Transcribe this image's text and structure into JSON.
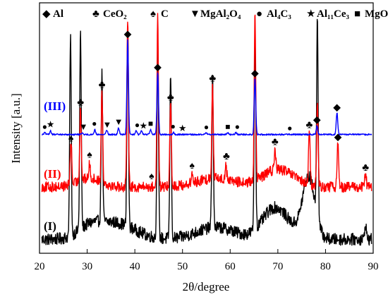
{
  "chart_data": {
    "type": "line",
    "title": "",
    "xlabel": "2θ/degree",
    "ylabel": "Intensity [a.u.]",
    "xlim": [
      20,
      90
    ],
    "x_ticks": [
      "20",
      "30",
      "40",
      "50",
      "60",
      "70",
      "80",
      "90"
    ],
    "y_ticks_visible": false,
    "grid": false,
    "legend": [
      {
        "symbol": "diamond",
        "name": "Al"
      },
      {
        "symbol": "club",
        "name": "CeO2",
        "display": "CeO₂"
      },
      {
        "symbol": "spade",
        "name": "C"
      },
      {
        "symbol": "triangle-down",
        "name": "MgAl2O4",
        "display": "MgAl₂O₄"
      },
      {
        "symbol": "circle",
        "name": "Al4C3",
        "display": "Al₄C₃"
      },
      {
        "symbol": "star",
        "name": "Al11Ce3",
        "display": "Al₁₁Ce₃"
      },
      {
        "symbol": "square",
        "name": "MgO"
      }
    ],
    "legend_placement": "top",
    "series": [
      {
        "label": "(I)",
        "color": "#000000",
        "baseline": 0.02,
        "noise": 0.06,
        "humps": [
          [
            30.5,
            0.05,
            2.5
          ],
          [
            36.0,
            0.08,
            4.0
          ],
          [
            57.0,
            0.06,
            4.0
          ],
          [
            69.0,
            0.12,
            2.5
          ],
          [
            76.5,
            0.3,
            1.3
          ],
          [
            71.5,
            0.05,
            3.0
          ]
        ],
        "peaks": [
          [
            26.5,
            1.0
          ],
          [
            28.6,
            0.98
          ],
          [
            33.1,
            0.73
          ],
          [
            38.5,
            1.0
          ],
          [
            44.8,
            0.98
          ],
          [
            47.5,
            0.82
          ],
          [
            56.3,
            0.76
          ],
          [
            65.2,
            1.0
          ],
          [
            78.3,
            1.0
          ],
          [
            88.4,
            0.08
          ]
        ]
      },
      {
        "label": "(II)",
        "color": "#ff0000",
        "baseline": 0.02,
        "noise": 0.06,
        "humps": [
          [
            30.5,
            0.05,
            2.5
          ],
          [
            57.0,
            0.05,
            4.0
          ],
          [
            69.0,
            0.06,
            3.0
          ],
          [
            71.5,
            0.05,
            3.0
          ]
        ],
        "peaks": [
          [
            26.6,
            0.26
          ],
          [
            28.6,
            0.42
          ],
          [
            30.5,
            0.08
          ],
          [
            33.1,
            0.52
          ],
          [
            38.5,
            0.98
          ],
          [
            44.8,
            0.98
          ],
          [
            47.5,
            0.49
          ],
          [
            52.0,
            0.05
          ],
          [
            56.3,
            0.55
          ],
          [
            59.1,
            0.08
          ],
          [
            65.2,
            0.98
          ],
          [
            69.4,
            0.12
          ],
          [
            76.6,
            0.31
          ],
          [
            78.3,
            0.48
          ],
          [
            82.6,
            0.26
          ],
          [
            88.4,
            0.08
          ]
        ]
      },
      {
        "label": "(III)",
        "color": "#0000ff",
        "baseline": 0.01,
        "noise": 0.015,
        "humps": [],
        "peaks": [
          [
            21.1,
            0.02
          ],
          [
            22.3,
            0.04
          ],
          [
            29.0,
            0.02
          ],
          [
            31.6,
            0.05
          ],
          [
            34.1,
            0.05
          ],
          [
            36.6,
            0.07
          ],
          [
            38.5,
            1.0
          ],
          [
            40.3,
            0.04
          ],
          [
            41.4,
            0.04
          ],
          [
            43.3,
            0.05
          ],
          [
            44.8,
            0.66
          ],
          [
            48.1,
            0.02
          ],
          [
            55.0,
            0.02
          ],
          [
            59.5,
            0.02
          ],
          [
            61.2,
            0.02
          ],
          [
            65.2,
            0.6
          ],
          [
            78.2,
            0.09
          ],
          [
            82.4,
            0.23
          ]
        ]
      }
    ],
    "annotations": [
      {
        "series": "(III)",
        "x": 21.1,
        "symbol": "circle"
      },
      {
        "series": "(III)",
        "x": 22.3,
        "symbol": "star"
      },
      {
        "series": "(III)",
        "x": 29.2,
        "symbol": "triangle-down"
      },
      {
        "series": "(III)",
        "x": 31.5,
        "symbol": "circle"
      },
      {
        "series": "(III)",
        "x": 34.2,
        "symbol": "triangle-down"
      },
      {
        "series": "(III)",
        "x": 36.6,
        "symbol": "triangle-down"
      },
      {
        "series": "(III)",
        "x": 38.5,
        "symbol": "diamond"
      },
      {
        "series": "(III)",
        "x": 40.5,
        "symbol": "circle"
      },
      {
        "series": "(III)",
        "x": 41.8,
        "symbol": "star"
      },
      {
        "series": "(III)",
        "x": 43.3,
        "symbol": "square"
      },
      {
        "series": "(III)",
        "x": 44.8,
        "symbol": "diamond"
      },
      {
        "series": "(III)",
        "x": 48.0,
        "symbol": "circle"
      },
      {
        "series": "(III)",
        "x": 50.0,
        "symbol": "star"
      },
      {
        "series": "(III)",
        "x": 55.0,
        "symbol": "circle"
      },
      {
        "series": "(III)",
        "x": 59.5,
        "symbol": "square"
      },
      {
        "series": "(III)",
        "x": 61.5,
        "symbol": "circle"
      },
      {
        "series": "(III)",
        "x": 65.2,
        "symbol": "diamond"
      },
      {
        "series": "(III)",
        "x": 72.5,
        "symbol": "circle"
      },
      {
        "series": "(III)",
        "x": 78.2,
        "symbol": "diamond"
      },
      {
        "series": "(III)",
        "x": 82.4,
        "symbol": "diamond"
      },
      {
        "series": "(II)",
        "x": 26.6,
        "symbol": "spade"
      },
      {
        "series": "(II)",
        "x": 28.6,
        "symbol": "club"
      },
      {
        "series": "(II)",
        "x": 30.5,
        "symbol": "spade"
      },
      {
        "series": "(II)",
        "x": 33.1,
        "symbol": "club"
      },
      {
        "series": "(II)",
        "x": 43.5,
        "symbol": "spade"
      },
      {
        "series": "(II)",
        "x": 47.5,
        "symbol": "club"
      },
      {
        "series": "(II)",
        "x": 52.0,
        "symbol": "spade"
      },
      {
        "series": "(II)",
        "x": 56.3,
        "symbol": "club"
      },
      {
        "series": "(II)",
        "x": 59.2,
        "symbol": "club"
      },
      {
        "series": "(II)",
        "x": 69.4,
        "symbol": "club"
      },
      {
        "series": "(II)",
        "x": 76.6,
        "symbol": "club"
      },
      {
        "series": "(II)",
        "x": 82.6,
        "symbol": "diamond"
      },
      {
        "series": "(II)",
        "x": 88.4,
        "symbol": "club"
      }
    ]
  }
}
